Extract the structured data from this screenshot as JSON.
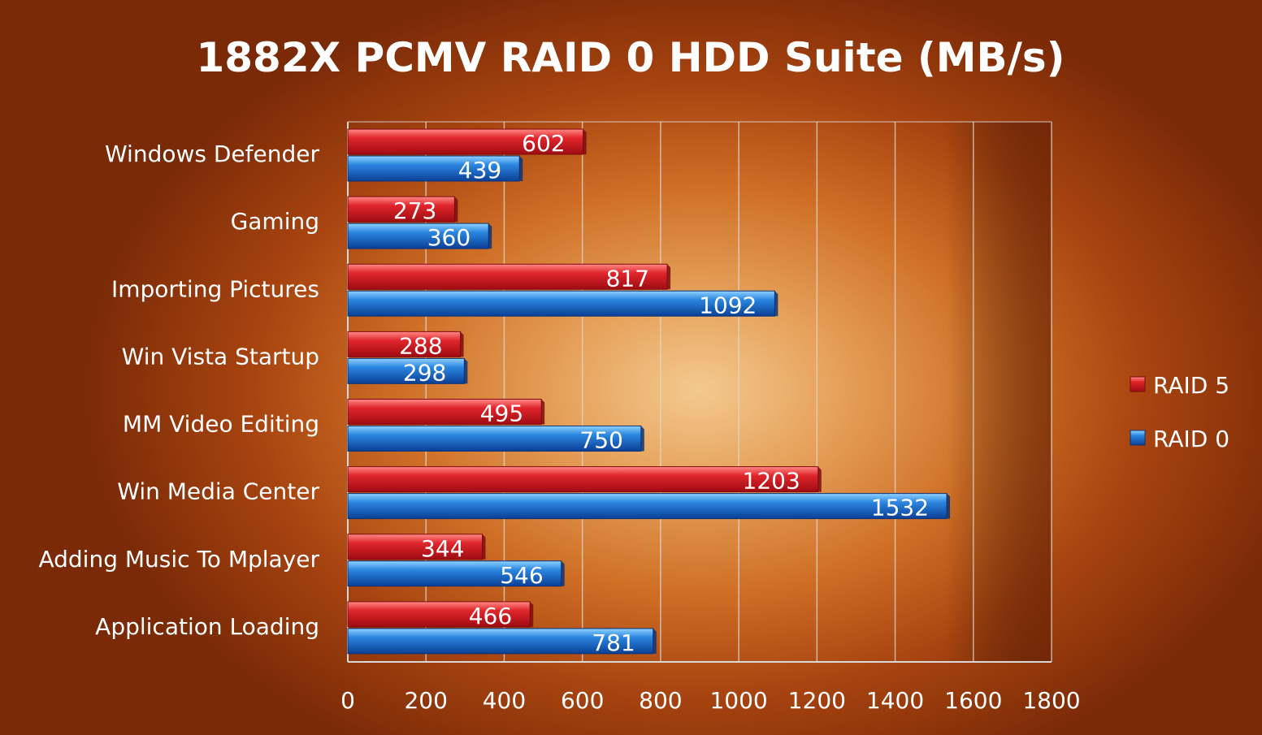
{
  "chart_data": {
    "type": "bar",
    "orientation": "horizontal",
    "title": "1882X PCMV RAID 0 HDD Suite (MB/s)",
    "categories": [
      "Windows Defender",
      "Gaming",
      "Importing Pictures",
      "Win Vista Startup",
      "MM Video Editing",
      "Win Media Center",
      "Adding Music To Mplayer",
      "Application Loading"
    ],
    "series": [
      {
        "name": "RAID 5",
        "color": "#d8232a",
        "values": [
          602,
          273,
          817,
          288,
          495,
          1203,
          344,
          466
        ]
      },
      {
        "name": "RAID 0",
        "color": "#1f78d6",
        "values": [
          439,
          360,
          1092,
          298,
          750,
          1532,
          546,
          781
        ]
      }
    ],
    "xlim": [
      0,
      1800
    ],
    "xticks": [
      "0",
      "200",
      "400",
      "600",
      "800",
      "1000",
      "1200",
      "1400",
      "1600",
      "1800"
    ],
    "grid": true,
    "legend_position": "right",
    "xlabel": "",
    "ylabel": ""
  }
}
